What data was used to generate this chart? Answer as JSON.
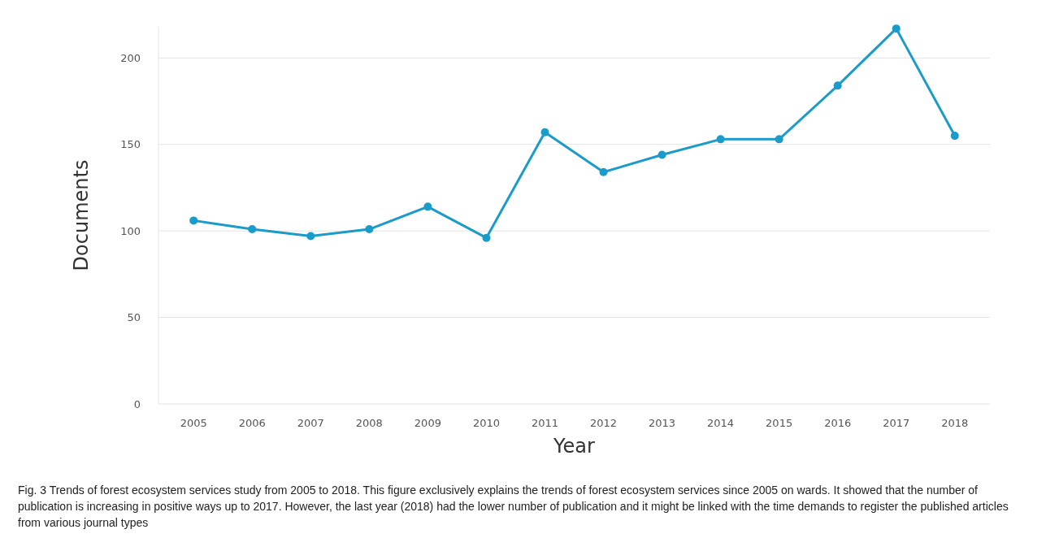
{
  "chart_data": {
    "type": "line",
    "xlabel": "Year",
    "ylabel": "Documents",
    "categories": [
      "2005",
      "2006",
      "2007",
      "2008",
      "2009",
      "2010",
      "2011",
      "2012",
      "2013",
      "2014",
      "2015",
      "2016",
      "2017",
      "2018"
    ],
    "series": [
      {
        "color": "#1a9bc9",
        "values": [
          106,
          101,
          97,
          101,
          114,
          96,
          157,
          134,
          144,
          153,
          153,
          184,
          217,
          155
        ]
      }
    ],
    "ylim": [
      0,
      218
    ],
    "yticks": [
      0,
      50,
      100,
      150,
      200
    ],
    "grid": "y",
    "marker": "circle",
    "line_style": "solid",
    "annotations": [
      "Fig. 3 Trends of forest ecosystem services study from 2005 to 2018. This figure exclusively explains the trends of forest ecosystem services since 2005 on wards. It showed that the number of publication is increasing in positive ways up to 2017. However, the last year (2018) had the lower number of publication and it might be linked with the time demands to register the published articles from various journal types"
    ]
  }
}
